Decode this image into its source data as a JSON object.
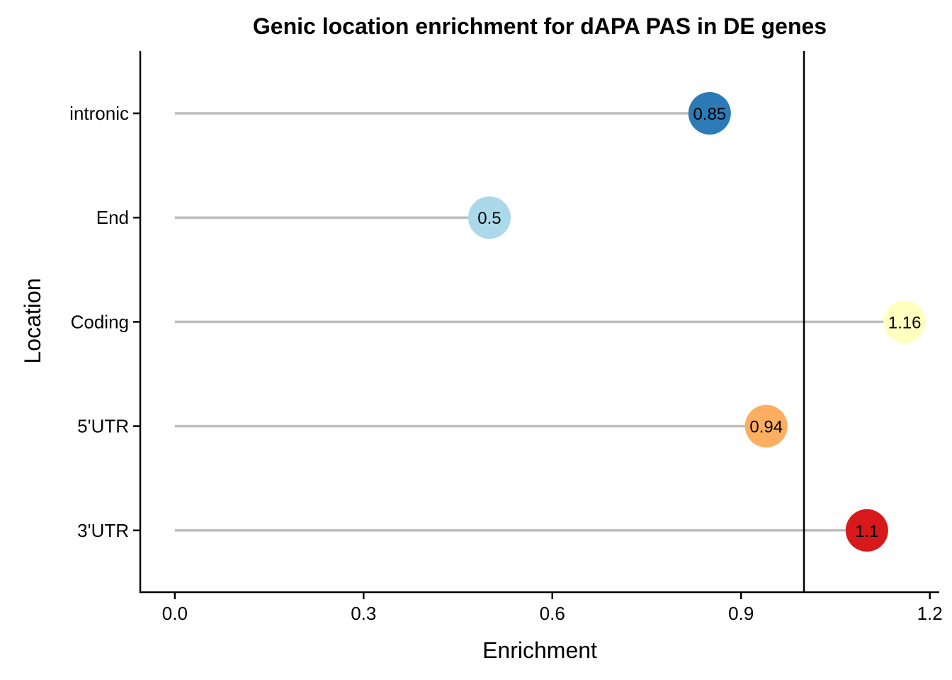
{
  "chart_data": {
    "type": "lollipop",
    "title": "Genic location enrichment for dAPA PAS in DE genes",
    "xlabel": "Enrichment",
    "ylabel": "Location",
    "xlim": [
      -0.055,
      1.215
    ],
    "x_ticks": [
      0.0,
      0.3,
      0.6,
      0.9,
      1.2
    ],
    "x_tick_labels": [
      "0.0",
      "0.3",
      "0.6",
      "0.9",
      "1.2"
    ],
    "reference_line": 1.0,
    "grid": false,
    "categories": [
      "intronic",
      "End",
      "Coding",
      "5'UTR",
      "3'UTR"
    ],
    "values": [
      0.85,
      0.5,
      1.16,
      0.94,
      1.1
    ],
    "labels": [
      "0.85",
      "0.5",
      "1.16",
      "0.94",
      "1.1"
    ],
    "colors": [
      "#2C7BB6",
      "#ABD9E9",
      "#FFFFBF",
      "#FDAE61",
      "#D7191C"
    ],
    "stem_color": "#BEBEBE"
  }
}
